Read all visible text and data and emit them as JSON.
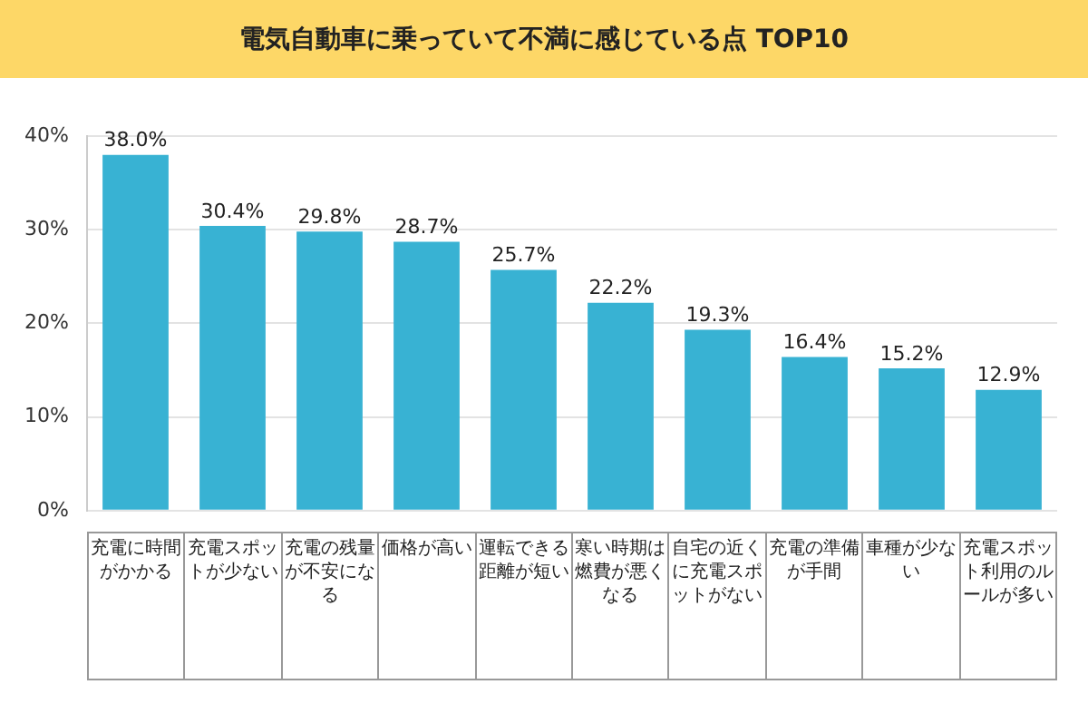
{
  "chart_data": {
    "type": "bar",
    "title": "電気自動車に乗っていて不満に感じている点 TOP10",
    "categories": [
      "充電に時間がかかる",
      "充電スポットが少ない",
      "充電の残量が不安になる",
      "価格が高い",
      "運転できる距離が短い",
      "寒い時期は燃費が悪くなる",
      "自宅の近くに充電スポットがない",
      "充電の準備が手間",
      "車種が少ない",
      "充電スポット利用のルールが多い"
    ],
    "values": [
      38.0,
      30.4,
      29.8,
      28.7,
      25.7,
      22.2,
      19.3,
      16.4,
      15.2,
      12.9
    ],
    "value_labels": [
      "38.0%",
      "30.4%",
      "29.8%",
      "28.7%",
      "25.7%",
      "22.2%",
      "19.3%",
      "16.4%",
      "15.2%",
      "12.9%"
    ],
    "color": "#38b2d3",
    "ylim": [
      0,
      40
    ],
    "yticks": [
      {
        "value": 0,
        "label": "0%"
      },
      {
        "value": 10,
        "label": "10%"
      },
      {
        "value": 20,
        "label": "20%"
      },
      {
        "value": 30,
        "label": "30%"
      },
      {
        "value": 40,
        "label": "40%"
      }
    ],
    "grid": "y",
    "legend": false
  }
}
